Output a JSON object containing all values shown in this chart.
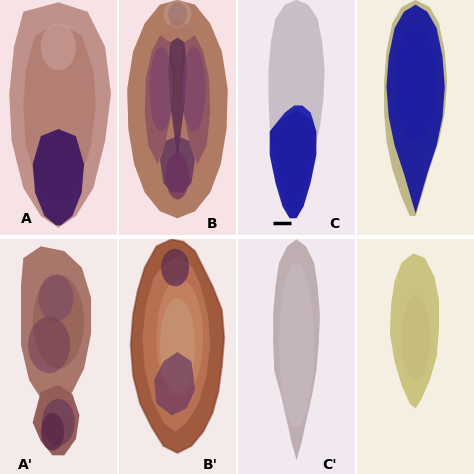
{
  "figure_width": 4.74,
  "figure_height": 4.74,
  "dpi": 100,
  "bg_top": "#f5e8e8",
  "bg_panels": {
    "r0c0": "#f5e0e2",
    "r0c1": "#f2e0e0",
    "r0c2": "#ede8ec",
    "r0c3": "#f0ede0",
    "r1c0": "#f0e8e8",
    "r1c1": "#f0e8e8",
    "r1c2": "#ede8ec",
    "r1c3": "#f0ede0"
  },
  "labels": [
    [
      "A",
      "B",
      "C",
      ""
    ],
    [
      "A'",
      "B'",
      "C'",
      ""
    ]
  ],
  "label_fontsize": 10,
  "wspace": 0.02,
  "hspace": 0.02
}
